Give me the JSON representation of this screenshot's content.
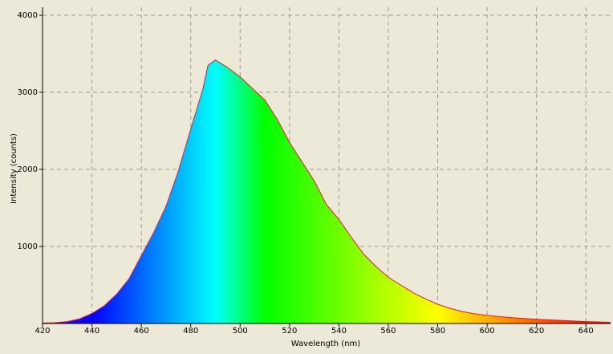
{
  "chart_data": {
    "type": "area",
    "x_label": "Wavelength (nm)",
    "y_label": "Intensity (counts)",
    "x": [
      420,
      425,
      430,
      435,
      440,
      445,
      450,
      455,
      460,
      465,
      470,
      475,
      480,
      485,
      487,
      490,
      495,
      500,
      505,
      510,
      515,
      520,
      525,
      530,
      535,
      540,
      545,
      550,
      555,
      560,
      565,
      570,
      575,
      580,
      585,
      590,
      595,
      600,
      610,
      620,
      630,
      640,
      650
    ],
    "values": [
      5,
      10,
      25,
      60,
      130,
      230,
      380,
      580,
      880,
      1180,
      1520,
      1980,
      2520,
      3050,
      3350,
      3420,
      3320,
      3200,
      3050,
      2900,
      2650,
      2350,
      2100,
      1850,
      1540,
      1350,
      1120,
      900,
      740,
      600,
      500,
      400,
      320,
      250,
      195,
      155,
      125,
      105,
      75,
      55,
      40,
      25,
      15
    ],
    "color": "#e02020",
    "xlim": [
      420,
      650
    ],
    "ylim": [
      0,
      4000
    ],
    "xticks": [
      420,
      440,
      460,
      480,
      500,
      520,
      540,
      560,
      580,
      600,
      620,
      640
    ],
    "yticks": [
      1000,
      2000,
      3000,
      4000
    ],
    "grid": true
  }
}
